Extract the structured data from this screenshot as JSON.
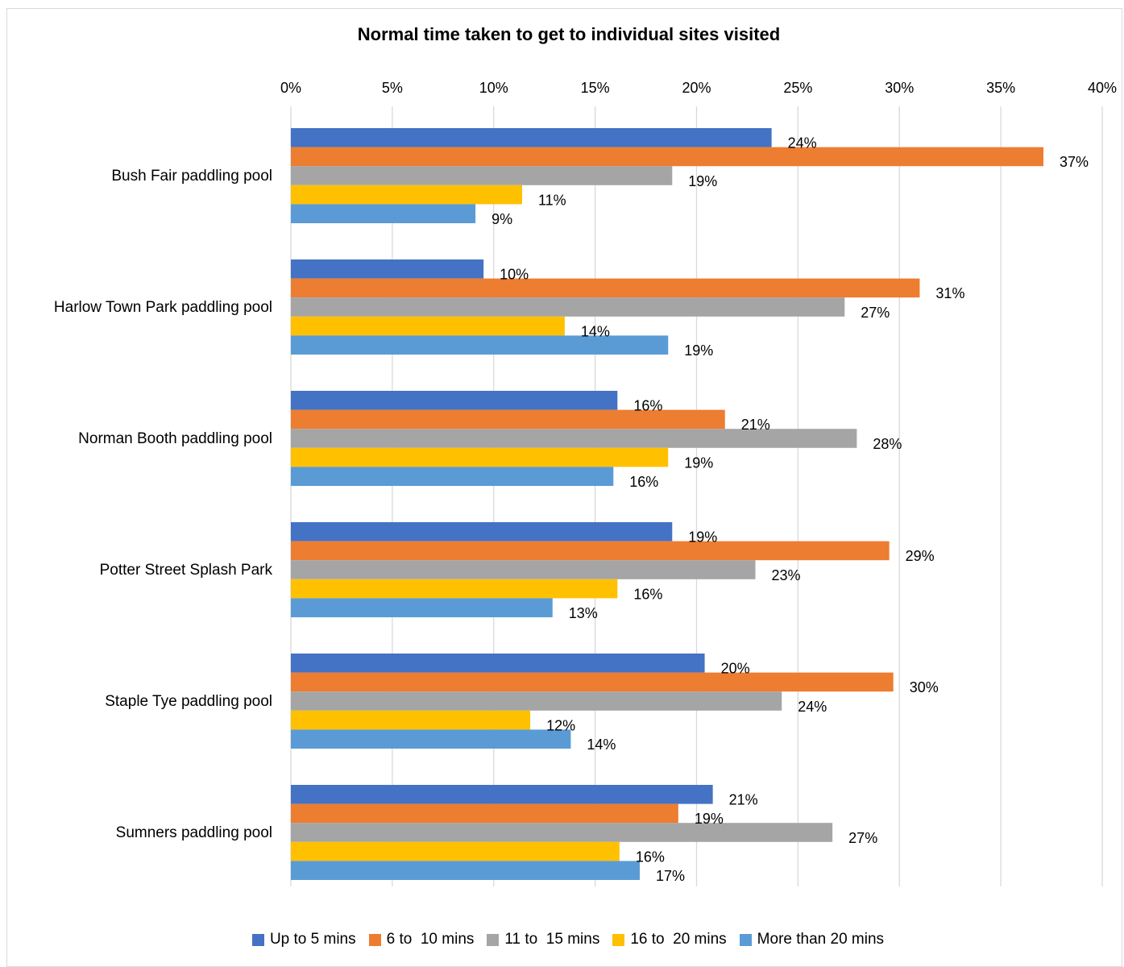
{
  "chart_data": {
    "type": "bar",
    "orientation": "horizontal",
    "title": "Normal time taken to get to individual sites visited",
    "xlabel": "",
    "ylabel": "",
    "xlim": [
      0,
      40
    ],
    "x_ticks": [
      "0%",
      "5%",
      "10%",
      "15%",
      "20%",
      "25%",
      "30%",
      "35%",
      "40%"
    ],
    "x_tick_values": [
      0,
      5,
      10,
      15,
      20,
      25,
      30,
      35,
      40
    ],
    "grid": "vertical",
    "legend_position": "bottom",
    "categories": [
      "Bush Fair paddling pool",
      "Harlow Town Park paddling pool",
      "Norman Booth paddling pool",
      "Potter Street Splash Park",
      "Staple Tye paddling pool",
      "Sumners paddling pool"
    ],
    "series": [
      {
        "name": "Up to 5 mins",
        "color": "#4472c4",
        "values": [
          23.7,
          9.5,
          16.1,
          18.8,
          20.4,
          20.8
        ],
        "labels": [
          "24%",
          "10%",
          "16%",
          "19%",
          "20%",
          "21%"
        ]
      },
      {
        "name": "6 to  10 mins",
        "color": "#ed7d31",
        "values": [
          37.1,
          31.0,
          21.4,
          29.5,
          29.7,
          19.1
        ],
        "labels": [
          "37%",
          "31%",
          "21%",
          "29%",
          "30%",
          "19%"
        ]
      },
      {
        "name": "11 to  15 mins",
        "color": "#a5a5a5",
        "values": [
          18.8,
          27.3,
          27.9,
          22.9,
          24.2,
          26.7
        ],
        "labels": [
          "19%",
          "27%",
          "28%",
          "23%",
          "24%",
          "27%"
        ]
      },
      {
        "name": "16 to  20 mins",
        "color": "#ffc000",
        "values": [
          11.4,
          13.5,
          18.6,
          16.1,
          11.8,
          16.2
        ],
        "labels": [
          "11%",
          "14%",
          "19%",
          "16%",
          "12%",
          "16%"
        ]
      },
      {
        "name": "More than 20 mins",
        "color": "#5b9bd5",
        "values": [
          9.1,
          18.6,
          15.9,
          12.9,
          13.8,
          17.2
        ],
        "labels": [
          "9%",
          "19%",
          "16%",
          "13%",
          "14%",
          "17%"
        ]
      }
    ]
  }
}
